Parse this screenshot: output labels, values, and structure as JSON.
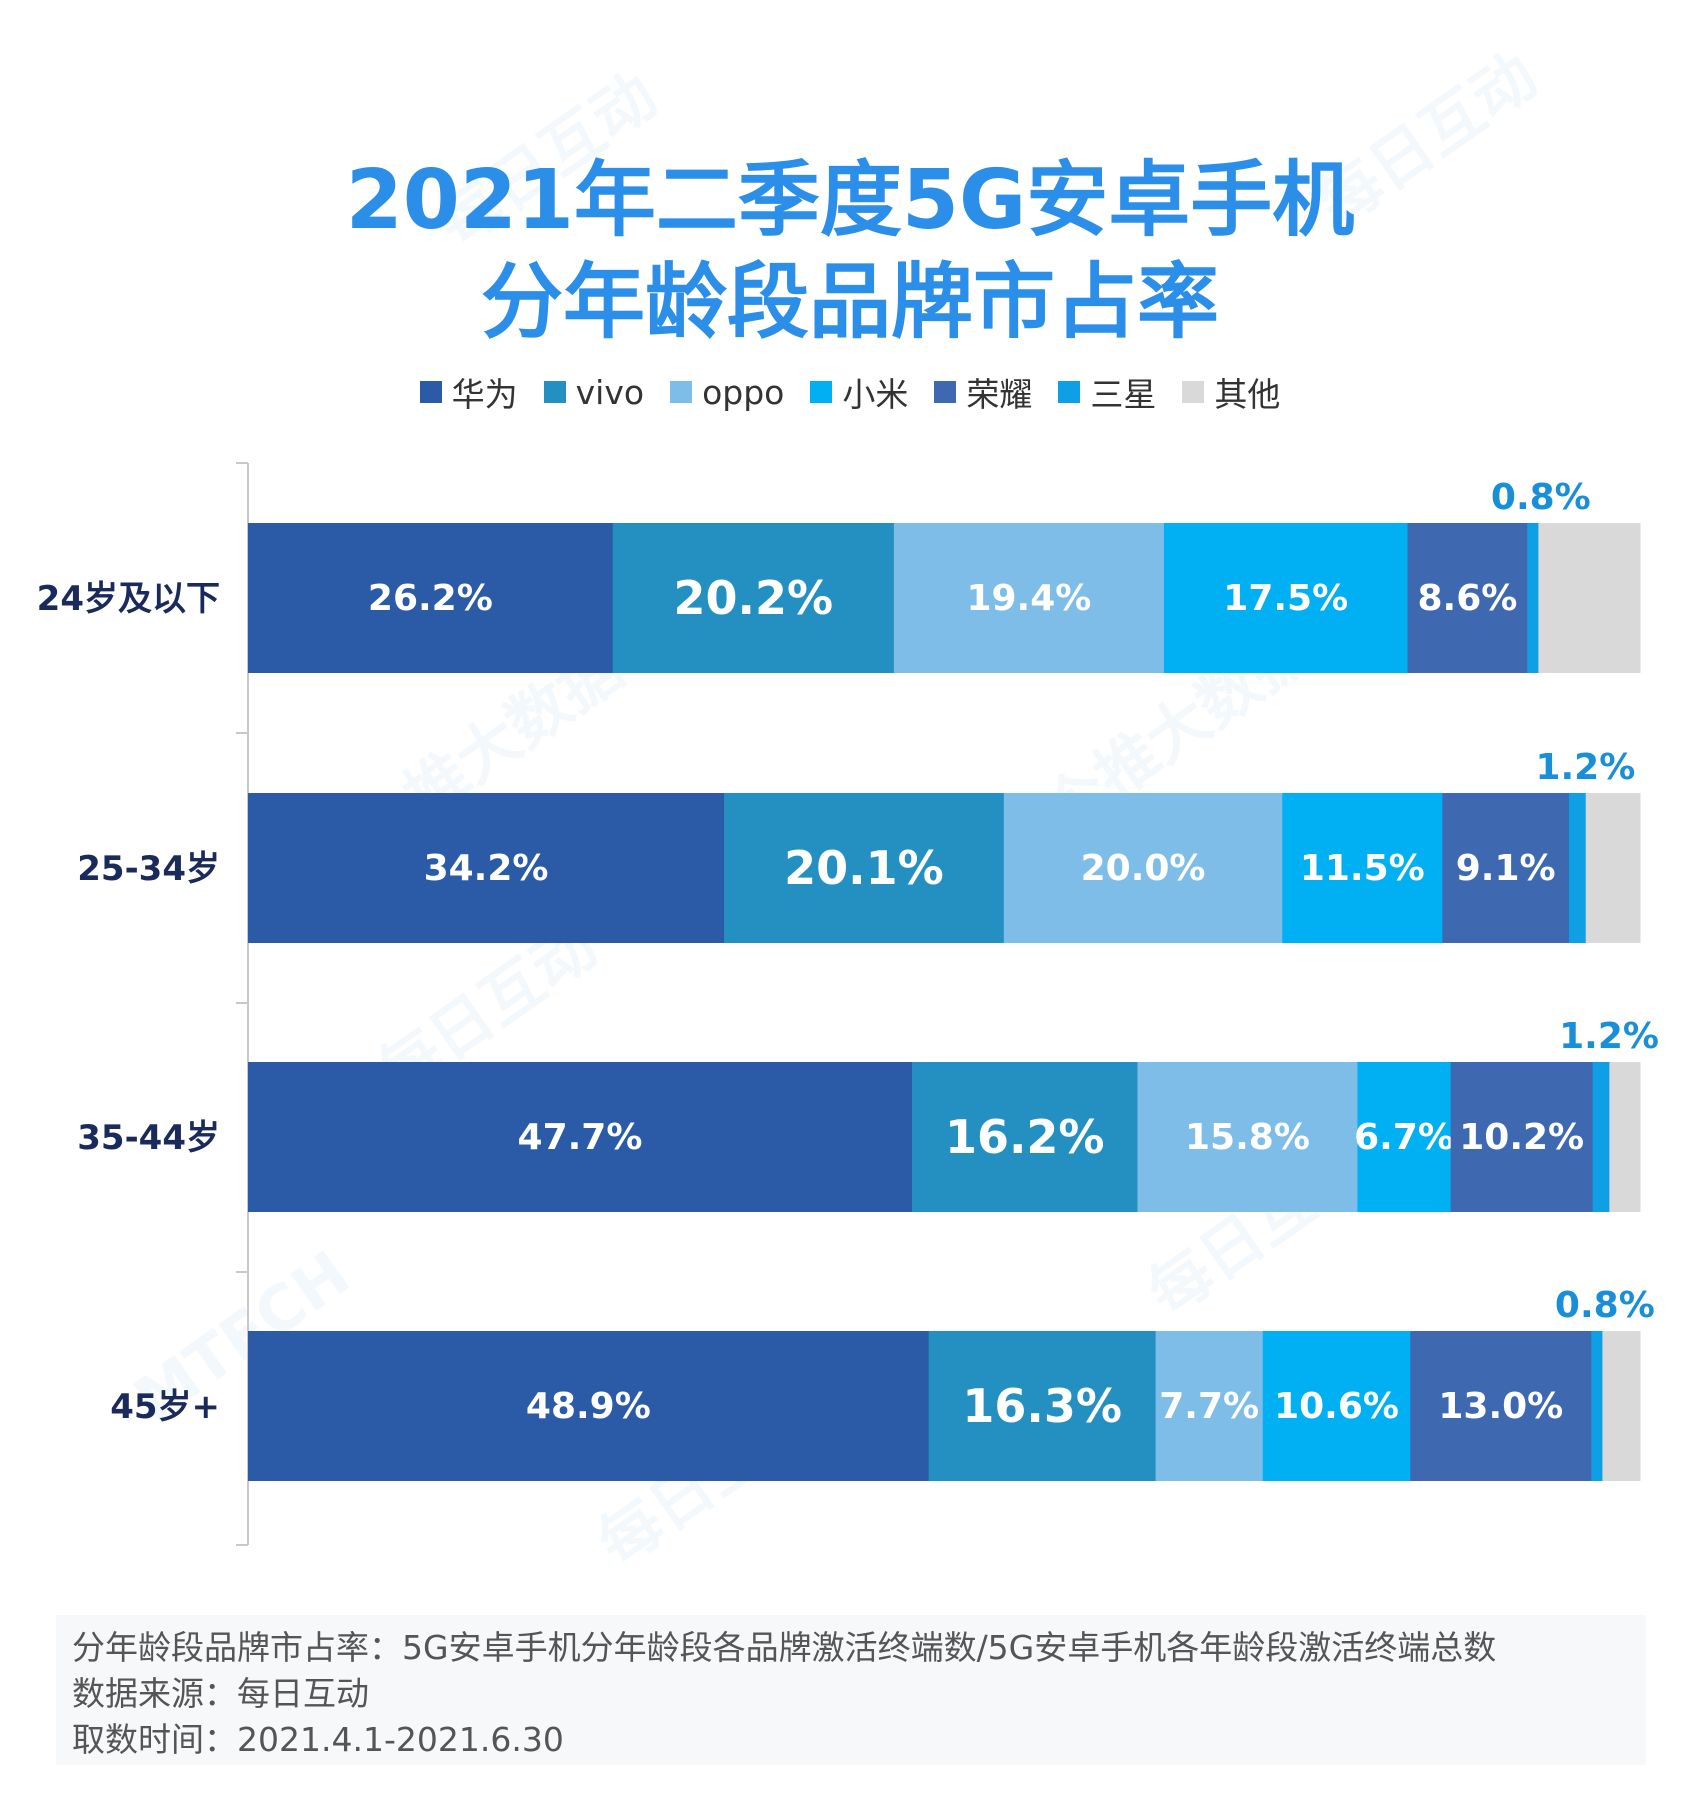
{
  "title_lines": [
    "2021年二季度5G安卓手机",
    "分年龄段品牌市占率"
  ],
  "watermark_text": [
    "每日互动",
    "个推大数据",
    "MTECH"
  ],
  "colors": {
    "huawei": "#2b5ba6",
    "vivo": "#2490c2",
    "oppo": "#7fbde9",
    "xiaomi": "#00b0f3",
    "honor": "#3e68b0",
    "samsung": "#0e9fe5",
    "other": "#d9d9d9",
    "title": "#2b8ee8",
    "annotation": "#1a8fd9",
    "category_label": "#1a2a5a"
  },
  "chart_data": {
    "type": "bar",
    "orientation": "horizontal-stacked-100",
    "title": "2021年二季度5G安卓手机分年龄段品牌市占率",
    "categories": [
      "24岁及以下",
      "25-34岁",
      "35-44岁",
      "45岁+"
    ],
    "series": [
      {
        "name": "华为",
        "key": "huawei",
        "values": [
          26.2,
          34.2,
          47.7,
          48.9
        ]
      },
      {
        "name": "vivo",
        "key": "vivo",
        "values": [
          20.2,
          20.1,
          16.2,
          16.3
        ]
      },
      {
        "name": "oppo",
        "key": "oppo",
        "values": [
          19.4,
          20.0,
          15.8,
          7.7
        ]
      },
      {
        "name": "小米",
        "key": "xiaomi",
        "values": [
          17.5,
          11.5,
          6.7,
          10.6
        ]
      },
      {
        "name": "荣耀",
        "key": "honor",
        "values": [
          8.6,
          9.1,
          10.2,
          13.0
        ]
      },
      {
        "name": "三星",
        "key": "samsung",
        "values": [
          0.8,
          1.2,
          1.2,
          0.8
        ]
      },
      {
        "name": "其他",
        "key": "other",
        "values": [
          7.3,
          3.9,
          2.2,
          2.7
        ]
      }
    ],
    "data_labels": [
      [
        "26.2%",
        "20.2%",
        "19.4%",
        "17.5%",
        "8.6%",
        "0.8%"
      ],
      [
        "34.2%",
        "20.1%",
        "20.0%",
        "11.5%",
        "9.1%",
        "1.2%"
      ],
      [
        "47.7%",
        "16.2%",
        "15.8%",
        "6.7%",
        "10.2%",
        "1.2%"
      ],
      [
        "48.9%",
        "16.3%",
        "7.7%",
        "10.6%",
        "13.0%",
        "0.8%"
      ]
    ],
    "xlim": [
      0,
      100
    ],
    "legend_position": "top-center",
    "grid": false
  },
  "footnote": {
    "line1": "分年龄段品牌市占率：5G安卓手机分年龄段各品牌激活终端数/5G安卓手机各年龄段激活终端总数",
    "line2": "数据来源：每日互动",
    "line3": "取数时间：2021.4.1-2021.6.30"
  }
}
